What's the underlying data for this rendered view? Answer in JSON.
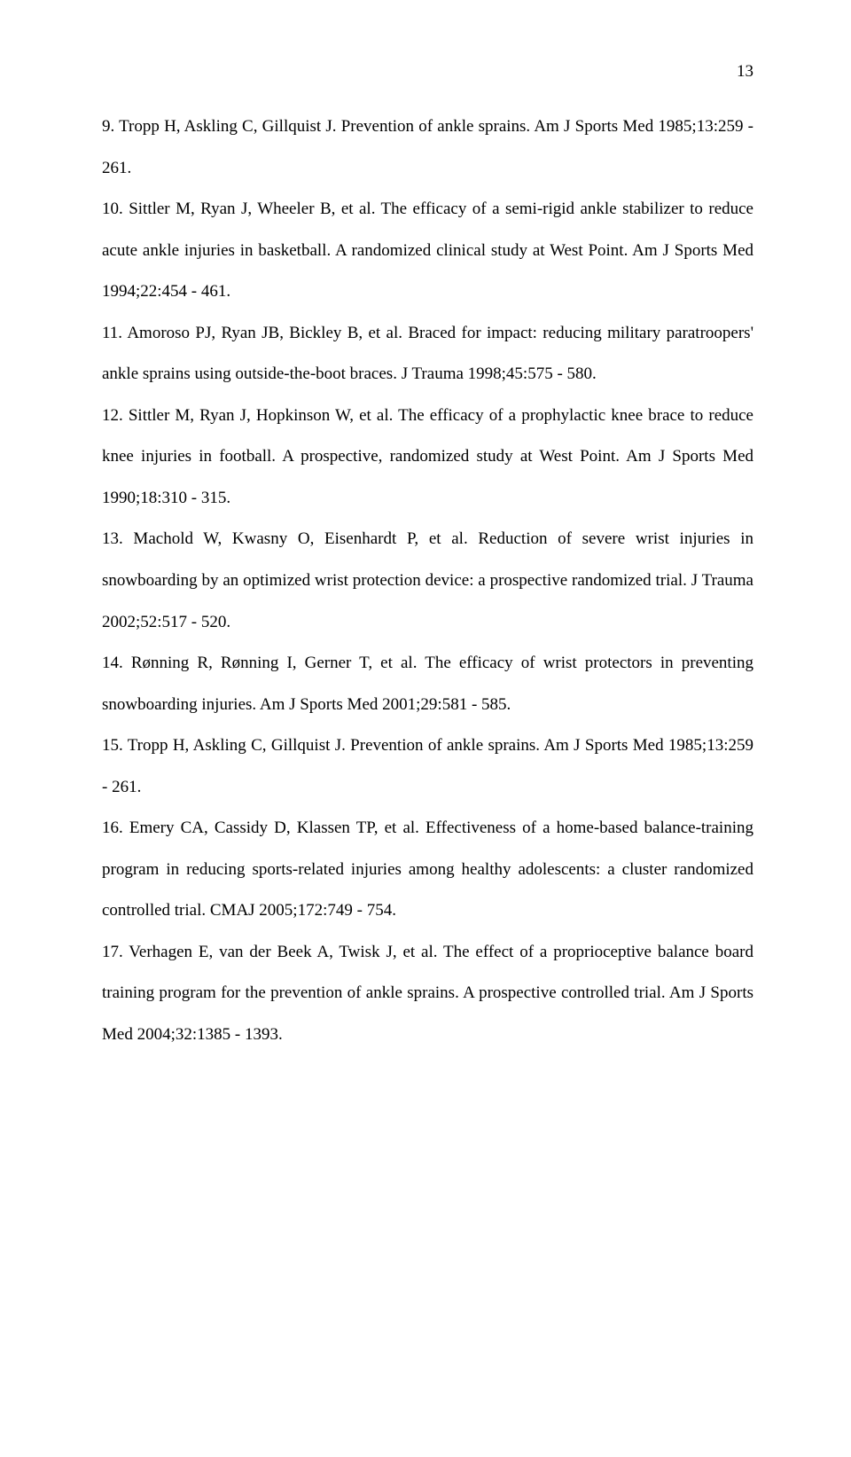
{
  "page_number": "13",
  "references": [
    {
      "text": "9. Tropp H, Askling C, Gillquist J. Prevention of ankle sprains. Am J Sports Med 1985;13:259 - 261."
    },
    {
      "text": "10. Sittler M, Ryan J, Wheeler B, et al. The efficacy of a semi-rigid ankle stabilizer to reduce acute ankle injuries in basketball. A randomized clinical study at West Point. Am J Sports Med 1994;22:454 - 461."
    },
    {
      "text": "11. Amoroso PJ, Ryan JB, Bickley B, et al. Braced for impact: reducing military paratroopers' ankle sprains using outside-the-boot braces. J Trauma 1998;45:575 - 580."
    },
    {
      "text": "12. Sittler M, Ryan J, Hopkinson W, et al. The efficacy of a prophylactic knee brace to reduce knee injuries in football. A prospective, randomized study at West Point. Am J Sports Med 1990;18:310 - 315."
    },
    {
      "text": "13. Machold W, Kwasny O, Eisenhardt P, et al. Reduction of severe wrist injuries in snowboarding by an optimized wrist protection device: a prospective randomized trial. J Trauma 2002;52:517 - 520."
    },
    {
      "text": "14. Rønning R, Rønning I, Gerner T, et al. The efficacy of wrist protectors in preventing snowboarding injuries. Am J Sports Med 2001;29:581 - 585."
    },
    {
      "text": "15. Tropp H, Askling C, Gillquist J. Prevention of ankle sprains. Am J Sports Med 1985;13:259 - 261."
    },
    {
      "text": "16. Emery CA, Cassidy D, Klassen TP, et al. Effectiveness of a home-based balance-training program in reducing sports-related injuries among healthy adolescents: a cluster randomized controlled trial. CMAJ 2005;172:749 - 754."
    },
    {
      "text": "17. Verhagen E, van der Beek A, Twisk J, et al. The effect of a proprioceptive balance board training program for the prevention of ankle sprains. A prospective controlled trial. Am J Sports Med 2004;32:1385 - 1393."
    }
  ]
}
